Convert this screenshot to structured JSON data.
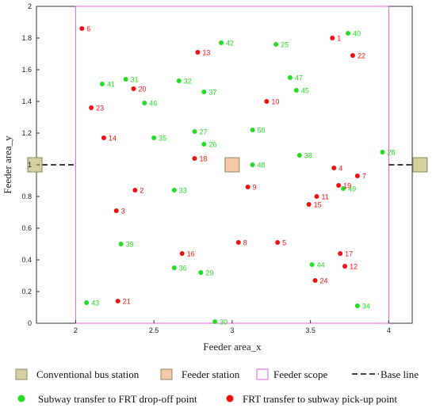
{
  "chart_data": {
    "type": "scatter",
    "xlabel": "Feeder area_x",
    "ylabel": "Feeder area_y",
    "xlim": [
      1.75,
      4.15
    ],
    "ylim": [
      0,
      2
    ],
    "xticks": [
      "2",
      "2.5",
      "3",
      "3.5",
      "4"
    ],
    "yticks": [
      "0",
      "0.2",
      "0.4",
      "0.6",
      "0.8",
      "1",
      "1.2",
      "1.4",
      "1.6",
      "1.8",
      "2"
    ],
    "grid": false,
    "feeder_scope": {
      "x": [
        2,
        4
      ],
      "y": [
        0,
        2
      ],
      "color": "#e060e0"
    },
    "base_line": {
      "y": 1.0,
      "color": "#000000"
    },
    "conventional_bus_stations": [
      {
        "x": 1.74,
        "y": 1.0
      },
      {
        "x": 4.2,
        "y": 1.0
      }
    ],
    "feeder_station": {
      "x": 3.0,
      "y": 1.0
    },
    "colors": {
      "green": "#22dd22",
      "red": "#ee1111",
      "station_fill": "#d6d0a0",
      "station_stroke": "#888866",
      "feeder_fill": "#f6c8a8"
    },
    "series": [
      {
        "name": "Subway transfer to FRT drop-off point",
        "color": "#22dd22",
        "points": [
          {
            "id": "25",
            "x": 3.28,
            "y": 1.76
          },
          {
            "id": "26",
            "x": 2.82,
            "y": 1.13
          },
          {
            "id": "27",
            "x": 2.76,
            "y": 1.21
          },
          {
            "id": "28",
            "x": 3.96,
            "y": 1.08
          },
          {
            "id": "29",
            "x": 2.8,
            "y": 0.32
          },
          {
            "id": "30",
            "x": 2.89,
            "y": 0.01
          },
          {
            "id": "31",
            "x": 2.32,
            "y": 1.54
          },
          {
            "id": "32",
            "x": 2.66,
            "y": 1.53
          },
          {
            "id": "33",
            "x": 2.63,
            "y": 0.84
          },
          {
            "id": "34",
            "x": 3.8,
            "y": 0.11
          },
          {
            "id": "35",
            "x": 2.5,
            "y": 1.17
          },
          {
            "id": "36",
            "x": 2.63,
            "y": 0.35
          },
          {
            "id": "37",
            "x": 2.82,
            "y": 1.46
          },
          {
            "id": "38",
            "x": 3.43,
            "y": 1.06
          },
          {
            "id": "39",
            "x": 2.29,
            "y": 0.5
          },
          {
            "id": "40",
            "x": 3.74,
            "y": 1.83
          },
          {
            "id": "41",
            "x": 2.17,
            "y": 1.51
          },
          {
            "id": "42",
            "x": 2.93,
            "y": 1.77
          },
          {
            "id": "43",
            "x": 2.07,
            "y": 0.13
          },
          {
            "id": "44",
            "x": 3.51,
            "y": 0.37
          },
          {
            "id": "45",
            "x": 3.41,
            "y": 1.47
          },
          {
            "id": "46",
            "x": 2.44,
            "y": 1.39
          },
          {
            "id": "47",
            "x": 3.37,
            "y": 1.55
          },
          {
            "id": "48",
            "x": 3.13,
            "y": 1.0
          },
          {
            "id": "49",
            "x": 3.71,
            "y": 0.85
          },
          {
            "id": "50",
            "x": 3.13,
            "y": 1.22
          }
        ]
      },
      {
        "name": "FRT transfer to subway pick-up point",
        "color": "#ee1111",
        "points": [
          {
            "id": "1",
            "x": 3.64,
            "y": 1.8
          },
          {
            "id": "2",
            "x": 2.38,
            "y": 0.84
          },
          {
            "id": "3",
            "x": 2.26,
            "y": 0.71
          },
          {
            "id": "4",
            "x": 3.65,
            "y": 0.98
          },
          {
            "id": "5",
            "x": 3.29,
            "y": 0.51
          },
          {
            "id": "6",
            "x": 2.04,
            "y": 1.86
          },
          {
            "id": "7",
            "x": 3.8,
            "y": 0.93
          },
          {
            "id": "8",
            "x": 3.04,
            "y": 0.51
          },
          {
            "id": "9",
            "x": 3.1,
            "y": 0.86
          },
          {
            "id": "10",
            "x": 3.22,
            "y": 1.4
          },
          {
            "id": "11",
            "x": 3.54,
            "y": 0.8
          },
          {
            "id": "12",
            "x": 3.72,
            "y": 0.36
          },
          {
            "id": "13",
            "x": 2.78,
            "y": 1.71
          },
          {
            "id": "14",
            "x": 2.18,
            "y": 1.17
          },
          {
            "id": "15",
            "x": 3.49,
            "y": 0.75
          },
          {
            "id": "16",
            "x": 2.68,
            "y": 0.44
          },
          {
            "id": "17",
            "x": 3.69,
            "y": 0.44
          },
          {
            "id": "18",
            "x": 2.76,
            "y": 1.04
          },
          {
            "id": "19",
            "x": 3.68,
            "y": 0.87
          },
          {
            "id": "20",
            "x": 2.37,
            "y": 1.48
          },
          {
            "id": "21",
            "x": 2.27,
            "y": 0.14
          },
          {
            "id": "22",
            "x": 3.77,
            "y": 1.69
          },
          {
            "id": "23",
            "x": 2.1,
            "y": 1.36
          },
          {
            "id": "24",
            "x": 3.53,
            "y": 0.27
          }
        ]
      }
    ]
  },
  "legend": {
    "items": [
      {
        "label": "Conventional bus station",
        "symbol": "bus-station"
      },
      {
        "label": "Feeder station",
        "symbol": "feeder-station"
      },
      {
        "label": "Feeder scope",
        "symbol": "scope"
      },
      {
        "label": "Base line",
        "symbol": "baseline"
      },
      {
        "label": "Subway transfer to FRT drop-off point",
        "symbol": "green-dot"
      },
      {
        "label": "FRT transfer to subway pick-up point",
        "symbol": "red-dot"
      }
    ]
  }
}
